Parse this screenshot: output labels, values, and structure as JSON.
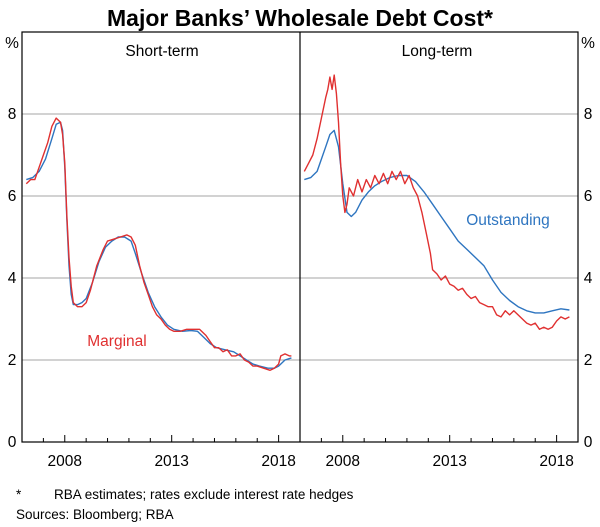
{
  "chart_data": {
    "type": "line",
    "title": "Major Banks’ Wholesale Debt Cost*",
    "ylabel": "%",
    "ylim": [
      0,
      10
    ],
    "yticks": [
      "0",
      "2",
      "4",
      "6",
      "8"
    ],
    "xticks": [
      "2008",
      "2013",
      "2018"
    ],
    "footnote_marker": "*",
    "footnote_text": "RBA estimates; rates exclude interest rate hedges",
    "sources": "Sources: Bloomberg; RBA",
    "colors": {
      "marginal": "#e03030",
      "outstanding": "#2e75c0",
      "grid": "#a6a6a6"
    },
    "panels": [
      {
        "title": "Short-term",
        "series": [
          {
            "name": "Marginal",
            "color": "marginal",
            "points": [
              [
                2006.2,
                6.3
              ],
              [
                2006.4,
                6.4
              ],
              [
                2006.6,
                6.4
              ],
              [
                2006.8,
                6.7
              ],
              [
                2007.0,
                7.0
              ],
              [
                2007.2,
                7.3
              ],
              [
                2007.4,
                7.7
              ],
              [
                2007.6,
                7.9
              ],
              [
                2007.8,
                7.8
              ],
              [
                2007.9,
                7.5
              ],
              [
                2008.0,
                6.8
              ],
              [
                2008.1,
                5.5
              ],
              [
                2008.2,
                4.5
              ],
              [
                2008.3,
                3.8
              ],
              [
                2008.4,
                3.4
              ],
              [
                2008.6,
                3.3
              ],
              [
                2008.8,
                3.3
              ],
              [
                2009.0,
                3.4
              ],
              [
                2009.2,
                3.7
              ],
              [
                2009.5,
                4.3
              ],
              [
                2009.8,
                4.7
              ],
              [
                2010.0,
                4.9
              ],
              [
                2010.3,
                4.95
              ],
              [
                2010.6,
                5.0
              ],
              [
                2010.9,
                5.05
              ],
              [
                2011.1,
                5.0
              ],
              [
                2011.3,
                4.8
              ],
              [
                2011.5,
                4.3
              ],
              [
                2011.7,
                3.9
              ],
              [
                2011.9,
                3.6
              ],
              [
                2012.1,
                3.3
              ],
              [
                2012.3,
                3.1
              ],
              [
                2012.5,
                3.0
              ],
              [
                2012.7,
                2.85
              ],
              [
                2012.9,
                2.75
              ],
              [
                2013.1,
                2.7
              ],
              [
                2013.4,
                2.7
              ],
              [
                2013.7,
                2.75
              ],
              [
                2014.0,
                2.75
              ],
              [
                2014.3,
                2.75
              ],
              [
                2014.6,
                2.6
              ],
              [
                2014.8,
                2.45
              ],
              [
                2015.0,
                2.3
              ],
              [
                2015.2,
                2.3
              ],
              [
                2015.4,
                2.2
              ],
              [
                2015.6,
                2.25
              ],
              [
                2015.8,
                2.1
              ],
              [
                2016.0,
                2.1
              ],
              [
                2016.2,
                2.15
              ],
              [
                2016.4,
                2.0
              ],
              [
                2016.6,
                1.95
              ],
              [
                2016.8,
                1.85
              ],
              [
                2017.0,
                1.85
              ],
              [
                2017.3,
                1.8
              ],
              [
                2017.6,
                1.75
              ],
              [
                2017.8,
                1.8
              ],
              [
                2018.0,
                1.9
              ],
              [
                2018.1,
                2.1
              ],
              [
                2018.3,
                2.15
              ],
              [
                2018.5,
                2.1
              ],
              [
                2018.6,
                2.1
              ]
            ]
          },
          {
            "name": "Outstanding",
            "color": "outstanding",
            "points": [
              [
                2006.2,
                6.4
              ],
              [
                2006.5,
                6.45
              ],
              [
                2006.8,
                6.6
              ],
              [
                2007.1,
                6.9
              ],
              [
                2007.4,
                7.4
              ],
              [
                2007.6,
                7.75
              ],
              [
                2007.8,
                7.8
              ],
              [
                2007.9,
                7.6
              ],
              [
                2008.0,
                6.7
              ],
              [
                2008.1,
                5.4
              ],
              [
                2008.2,
                4.3
              ],
              [
                2008.3,
                3.6
              ],
              [
                2008.4,
                3.35
              ],
              [
                2008.6,
                3.35
              ],
              [
                2008.8,
                3.4
              ],
              [
                2009.0,
                3.5
              ],
              [
                2009.3,
                3.9
              ],
              [
                2009.6,
                4.4
              ],
              [
                2009.9,
                4.75
              ],
              [
                2010.2,
                4.9
              ],
              [
                2010.5,
                5.0
              ],
              [
                2010.8,
                5.0
              ],
              [
                2011.1,
                4.9
              ],
              [
                2011.3,
                4.6
              ],
              [
                2011.6,
                4.1
              ],
              [
                2011.9,
                3.65
              ],
              [
                2012.2,
                3.3
              ],
              [
                2012.5,
                3.05
              ],
              [
                2012.8,
                2.85
              ],
              [
                2013.1,
                2.75
              ],
              [
                2013.5,
                2.7
              ],
              [
                2013.9,
                2.72
              ],
              [
                2014.2,
                2.7
              ],
              [
                2014.5,
                2.55
              ],
              [
                2014.8,
                2.4
              ],
              [
                2015.1,
                2.3
              ],
              [
                2015.5,
                2.25
              ],
              [
                2015.9,
                2.2
              ],
              [
                2016.2,
                2.1
              ],
              [
                2016.5,
                2.0
              ],
              [
                2016.8,
                1.9
              ],
              [
                2017.1,
                1.85
              ],
              [
                2017.5,
                1.8
              ],
              [
                2017.8,
                1.8
              ],
              [
                2018.0,
                1.85
              ],
              [
                2018.3,
                2.0
              ],
              [
                2018.6,
                2.05
              ]
            ]
          }
        ]
      },
      {
        "title": "Long-term",
        "series": [
          {
            "name": "Marginal",
            "color": "marginal",
            "points": [
              [
                2006.2,
                6.6
              ],
              [
                2006.4,
                6.8
              ],
              [
                2006.6,
                7.0
              ],
              [
                2006.8,
                7.4
              ],
              [
                2007.0,
                7.9
              ],
              [
                2007.2,
                8.4
              ],
              [
                2007.3,
                8.6
              ],
              [
                2007.4,
                8.9
              ],
              [
                2007.5,
                8.6
              ],
              [
                2007.6,
                8.95
              ],
              [
                2007.7,
                8.5
              ],
              [
                2007.8,
                7.8
              ],
              [
                2007.9,
                6.8
              ],
              [
                2008.0,
                6.0
              ],
              [
                2008.1,
                5.6
              ],
              [
                2008.2,
                5.8
              ],
              [
                2008.3,
                6.2
              ],
              [
                2008.5,
                6.0
              ],
              [
                2008.7,
                6.4
              ],
              [
                2008.9,
                6.1
              ],
              [
                2009.1,
                6.4
              ],
              [
                2009.3,
                6.2
              ],
              [
                2009.5,
                6.5
              ],
              [
                2009.7,
                6.3
              ],
              [
                2009.9,
                6.55
              ],
              [
                2010.1,
                6.3
              ],
              [
                2010.3,
                6.6
              ],
              [
                2010.5,
                6.4
              ],
              [
                2010.7,
                6.6
              ],
              [
                2010.9,
                6.3
              ],
              [
                2011.1,
                6.5
              ],
              [
                2011.3,
                6.2
              ],
              [
                2011.5,
                6.0
              ],
              [
                2011.7,
                5.6
              ],
              [
                2011.9,
                5.1
              ],
              [
                2012.1,
                4.6
              ],
              [
                2012.2,
                4.2
              ],
              [
                2012.4,
                4.1
              ],
              [
                2012.6,
                3.95
              ],
              [
                2012.8,
                4.05
              ],
              [
                2013.0,
                3.85
              ],
              [
                2013.2,
                3.8
              ],
              [
                2013.4,
                3.7
              ],
              [
                2013.6,
                3.75
              ],
              [
                2013.8,
                3.6
              ],
              [
                2014.0,
                3.5
              ],
              [
                2014.2,
                3.55
              ],
              [
                2014.4,
                3.4
              ],
              [
                2014.6,
                3.35
              ],
              [
                2014.8,
                3.3
              ],
              [
                2015.0,
                3.3
              ],
              [
                2015.2,
                3.1
              ],
              [
                2015.4,
                3.05
              ],
              [
                2015.6,
                3.2
              ],
              [
                2015.8,
                3.1
              ],
              [
                2016.0,
                3.2
              ],
              [
                2016.2,
                3.1
              ],
              [
                2016.4,
                3.0
              ],
              [
                2016.6,
                2.9
              ],
              [
                2016.8,
                2.85
              ],
              [
                2017.0,
                2.9
              ],
              [
                2017.2,
                2.75
              ],
              [
                2017.4,
                2.8
              ],
              [
                2017.6,
                2.75
              ],
              [
                2017.8,
                2.8
              ],
              [
                2018.0,
                2.95
              ],
              [
                2018.2,
                3.05
              ],
              [
                2018.4,
                3.0
              ],
              [
                2018.6,
                3.05
              ]
            ]
          },
          {
            "name": "Outstanding",
            "color": "outstanding",
            "points": [
              [
                2006.2,
                6.4
              ],
              [
                2006.5,
                6.45
              ],
              [
                2006.8,
                6.6
              ],
              [
                2007.0,
                6.9
              ],
              [
                2007.2,
                7.2
              ],
              [
                2007.4,
                7.5
              ],
              [
                2007.6,
                7.6
              ],
              [
                2007.8,
                7.2
              ],
              [
                2008.0,
                6.3
              ],
              [
                2008.2,
                5.6
              ],
              [
                2008.4,
                5.5
              ],
              [
                2008.6,
                5.6
              ],
              [
                2008.9,
                5.9
              ],
              [
                2009.2,
                6.1
              ],
              [
                2009.5,
                6.25
              ],
              [
                2009.8,
                6.35
              ],
              [
                2010.2,
                6.45
              ],
              [
                2010.6,
                6.5
              ],
              [
                2011.0,
                6.5
              ],
              [
                2011.4,
                6.35
              ],
              [
                2011.8,
                6.1
              ],
              [
                2012.2,
                5.8
              ],
              [
                2012.6,
                5.5
              ],
              [
                2013.0,
                5.2
              ],
              [
                2013.4,
                4.9
              ],
              [
                2013.8,
                4.7
              ],
              [
                2014.2,
                4.5
              ],
              [
                2014.6,
                4.3
              ],
              [
                2015.0,
                3.95
              ],
              [
                2015.4,
                3.65
              ],
              [
                2015.8,
                3.45
              ],
              [
                2016.2,
                3.3
              ],
              [
                2016.6,
                3.2
              ],
              [
                2017.0,
                3.15
              ],
              [
                2017.4,
                3.15
              ],
              [
                2017.8,
                3.2
              ],
              [
                2018.2,
                3.25
              ],
              [
                2018.6,
                3.22
              ]
            ]
          }
        ]
      }
    ],
    "annotations": [
      {
        "panel": 0,
        "series": "Marginal",
        "text": "Marginal"
      },
      {
        "panel": 1,
        "series": "Outstanding",
        "text": "Outstanding"
      }
    ]
  }
}
